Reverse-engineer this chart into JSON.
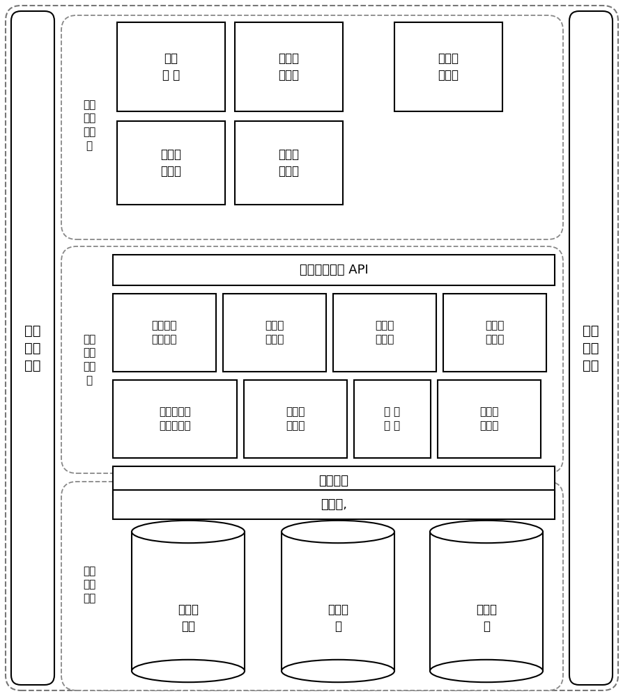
{
  "bg_color": "#ffffff",
  "fig_width": 8.95,
  "fig_height": 10.0,
  "left_label": "系统\n管理\n模块",
  "right_label": "系统\n操作\n模块",
  "section1_label": "应用\n服务\n子系\n统",
  "section2_label": "调度\n控制\n子系\n统",
  "section3_label": "基础\n硬件\n设施",
  "boxes_row1": [
    "无人\n机 注",
    "飞行任\n务申请",
    "商用用\n户登录"
  ],
  "boxes_row2": [
    "飞行数\n据监控",
    "定期航\n班管理"
  ],
  "api_label": "应用程序接口 API",
  "boxes_mid1": [
    "认证、授\n权、模块",
    "飞行航\n线管理",
    "飞行数\n据管理",
    "飞行任\n务管理"
  ],
  "boxes_mid2": [
    "应急飞行控\n制与调度模",
    "调度管\n理模块",
    "地 理\n信 息",
    "民航监\n管系统"
  ],
  "os_label": "操作系统",
  "virtual_label": "虚拟化,",
  "cylinders": [
    "数据库\n设备",
    "主机设\n备",
    "网络设\n备"
  ]
}
